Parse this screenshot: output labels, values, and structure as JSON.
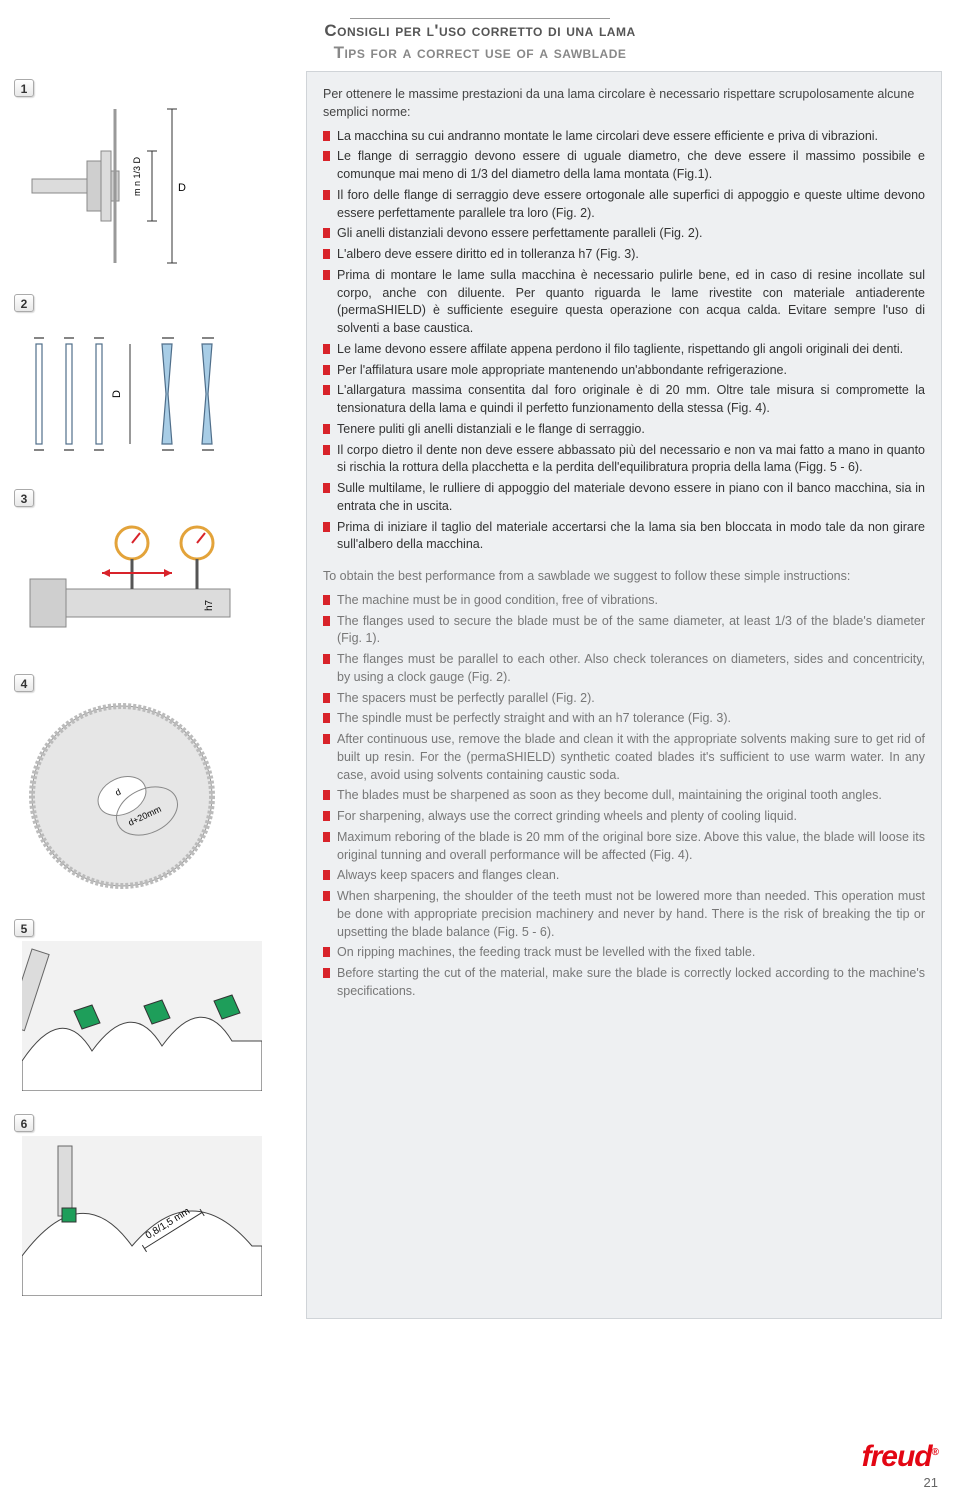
{
  "header": {
    "title_it": "Consigli per l'uso corretto di una lama",
    "title_en": "Tips for a correct use of a sawblade"
  },
  "figures": {
    "labels": [
      "1",
      "2",
      "3",
      "4",
      "5",
      "6"
    ],
    "fig1": {
      "dim_labels": [
        "m n 1/3 D",
        "D"
      ],
      "colors": {
        "metal": "#dcdcdc",
        "shaft": "#bdbdbd"
      }
    },
    "fig2": {
      "dim_label": "D",
      "colors": {
        "spacer": "#a8cde6",
        "outline": "#4f6e8a"
      }
    },
    "fig3": {
      "tol_label": "h7",
      "colors": {
        "shaft": "#dcdcdc",
        "indicator": "#e3a33a",
        "needle": "#d8232a",
        "arrow": "#d8232a"
      }
    },
    "fig4": {
      "bore_labels": [
        "d",
        "d+20mm"
      ],
      "colors": {
        "blade_body": "#e0e0e0",
        "slot": "#cfcfcf"
      }
    },
    "fig5": {
      "colors": {
        "tooth_tip": "#1e9e5a",
        "body": "#dcdcdc",
        "outline": "#333"
      }
    },
    "fig6": {
      "gap_label": "0,8/1,5 mm",
      "colors": {
        "tooth_tip": "#1e9e5a",
        "body": "#dcdcdc"
      }
    }
  },
  "text": {
    "intro_it": "Per ottenere le massime prestazioni da una lama circolare è necessario rispettare scrupolosamente alcune semplici norme:",
    "bullets_it": [
      "La macchina su cui andranno montate le lame circolari deve essere efficiente e priva di vibrazioni.",
      "Le flange di serraggio devono essere di uguale diametro, che deve essere il massimo possibile e comunque mai meno di 1/3 del diametro della lama montata (Fig.1).",
      "Il foro delle flange di serraggio deve essere ortogonale alle superfici di appoggio e queste ultime devono essere perfettamente parallele tra loro (Fig. 2).",
      "Gli anelli distanziali devono essere perfettamente paralleli (Fig. 2).",
      "L'albero deve essere diritto ed in tolleranza h7 (Fig. 3).",
      "Prima di montare le lame sulla macchina è necessario pulirle bene, ed in caso di resine incollate sul corpo, anche con diluente. Per quanto riguarda le lame rivestite con materiale antiaderente (permaSHIELD) è sufficiente eseguire questa operazione con acqua calda. Evitare sempre l'uso di solventi a base caustica.",
      "Le lame devono essere affilate appena perdono il filo tagliente, rispettando gli angoli originali dei denti.",
      "Per l'affilatura usare mole appropriate mantenendo un'abbondante refrigerazione.",
      "L'allargatura massima consentita dal foro originale è di 20 mm. Oltre tale misura si compromette la tensionatura della lama e quindi il perfetto funzionamento della stessa (Fig. 4).",
      "Tenere puliti gli anelli distanziali e le flange di serraggio.",
      "Il corpo dietro il dente non deve essere abbassato più del necessario e non va mai fatto a mano in quanto si rischia la rottura della placchetta e la perdita dell'equilibratura propria della lama (Figg. 5 - 6).",
      "Sulle multilame, le rulliere di appoggio del materiale devono essere in piano con il banco macchina, sia in entrata che in uscita.",
      "Prima di iniziare il taglio del materiale accertarsi che la lama sia ben bloccata in modo tale da non girare sull'albero della macchina."
    ],
    "intro_en": "To obtain the best performance from a sawblade we suggest to follow these simple instructions:",
    "bullets_en": [
      "The machine must be in good condition, free of vibrations.",
      "The flanges used to secure the blade must be of the same diameter, at least 1/3 of the blade's diameter (Fig. 1).",
      "The flanges must be parallel to each other. Also check tolerances on diameters, sides and concentricity, by using a clock gauge (Fig. 2).",
      "The spacers must be perfectly parallel (Fig. 2).",
      "The spindle must be perfectly straight and with an h7 tolerance (Fig. 3).",
      "After continuous use, remove the blade and clean it with the appropriate solvents making sure to get rid of built up resin. For the (permaSHIELD) synthetic coated blades it's sufficient to use warm water. In any case, avoid using solvents containing caustic soda.",
      "The blades must be sharpened as soon as they become dull, maintaining the original tooth angles.",
      "For sharpening, always use the correct grinding wheels and plenty of cooling liquid.",
      "Maximum reboring of the blade is 20 mm of the original bore size. Above this value, the blade will loose its original tunning and overall performance will be affected (Fig. 4).",
      "Always keep spacers and flanges clean.",
      "When sharpening, the shoulder of the teeth must not be lowered more than needed. This operation must be done with appropriate precision machinery and never by hand. There is the risk of breaking the tip or upsetting the blade balance (Fig. 5 - 6).",
      "On ripping machines, the feeding track must be levelled with the fixed table.",
      "Before starting the cut of the material, make sure the blade is correctly locked according to the machine's specifications."
    ]
  },
  "theme": {
    "bullet_color": "#d8232a",
    "panel_bg": "#eef0f2",
    "panel_border": "#d0d4d8",
    "en_text_color": "#777777",
    "logo_color": "#e30613"
  },
  "footer": {
    "page_number": "21",
    "logo_text": "freud",
    "logo_reg": "®"
  }
}
